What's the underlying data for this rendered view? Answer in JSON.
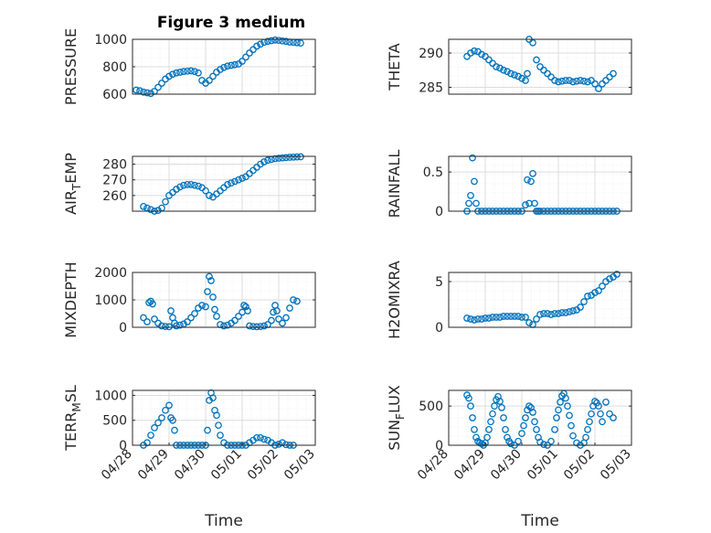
{
  "figure": {
    "title": "Figure 3 medium",
    "marker_color": "#0072BD",
    "axis_color": "#262626",
    "grid_color": "#dcdcdc",
    "background": "#ffffff"
  },
  "chart_data": [
    {
      "type": "scatter",
      "ylabel": "PRESSURE",
      "ylim": [
        600,
        1000
      ],
      "yticks": [
        600,
        800,
        1000
      ],
      "ytick_labels": [
        "600",
        "800",
        "1000"
      ],
      "xlim": [
        0,
        5
      ],
      "xticks": [],
      "xtick_labels": [],
      "xlabel": "",
      "grid": true,
      "series": [
        {
          "x": [
            0.1,
            0.2,
            0.3,
            0.4,
            0.5,
            0.6,
            0.7,
            0.8,
            0.9,
            1.0,
            1.1,
            1.2,
            1.3,
            1.4,
            1.5,
            1.6,
            1.7,
            1.8,
            1.9,
            2.0,
            2.1,
            2.2,
            2.3,
            2.4,
            2.5,
            2.6,
            2.7,
            2.8,
            2.9,
            3.0,
            3.1,
            3.2,
            3.3,
            3.4,
            3.5,
            3.6,
            3.7,
            3.8,
            3.9,
            4.0,
            4.1,
            4.2,
            4.3,
            4.4,
            4.5,
            4.6
          ],
          "y": [
            630,
            625,
            615,
            610,
            605,
            620,
            650,
            680,
            710,
            730,
            745,
            755,
            760,
            765,
            768,
            770,
            765,
            755,
            700,
            680,
            700,
            730,
            760,
            780,
            795,
            805,
            810,
            815,
            820,
            840,
            870,
            900,
            925,
            950,
            965,
            978,
            985,
            990,
            995,
            992,
            988,
            985,
            980,
            978,
            975,
            972
          ]
        }
      ]
    },
    {
      "type": "scatter",
      "ylabel": "THETA",
      "ylim": [
        284,
        292
      ],
      "yticks": [
        285,
        290
      ],
      "ytick_labels": [
        "285",
        "290"
      ],
      "xlim": [
        0,
        5
      ],
      "xticks": [],
      "xtick_labels": [],
      "xlabel": "",
      "grid": true,
      "series": [
        {
          "x": [
            0.5,
            0.6,
            0.7,
            0.8,
            0.9,
            1.0,
            1.1,
            1.2,
            1.3,
            1.4,
            1.5,
            1.6,
            1.7,
            1.8,
            1.9,
            2.0,
            2.1,
            2.15,
            2.2,
            2.3,
            2.4,
            2.5,
            2.6,
            2.7,
            2.8,
            2.9,
            3.0,
            3.1,
            3.2,
            3.3,
            3.4,
            3.5,
            3.6,
            3.7,
            3.8,
            3.9,
            4.0,
            4.1,
            4.2,
            4.3,
            4.4,
            4.5
          ],
          "y": [
            289.5,
            290.0,
            290.3,
            290.2,
            289.8,
            289.5,
            289.0,
            288.5,
            288.0,
            287.8,
            287.5,
            287.3,
            287.0,
            286.8,
            286.6,
            286.3,
            286.0,
            287.0,
            292.0,
            291.5,
            289.0,
            288.0,
            287.5,
            287.0,
            286.5,
            286.0,
            285.8,
            285.9,
            286.0,
            286.0,
            285.8,
            285.9,
            286.0,
            285.9,
            285.8,
            286.0,
            285.5,
            284.8,
            285.5,
            286.0,
            286.5,
            287.0
          ]
        }
      ]
    },
    {
      "type": "scatter",
      "ylabel": "AIR_TEMP",
      "ylim": [
        250,
        285
      ],
      "yticks": [
        260,
        270,
        280
      ],
      "ytick_labels": [
        "260",
        "270",
        "280"
      ],
      "xlim": [
        0,
        5
      ],
      "xticks": [],
      "xtick_labels": [],
      "xlabel": "",
      "grid": true,
      "series": [
        {
          "x": [
            0.3,
            0.4,
            0.5,
            0.6,
            0.7,
            0.8,
            0.9,
            1.0,
            1.1,
            1.2,
            1.3,
            1.4,
            1.5,
            1.6,
            1.7,
            1.8,
            1.9,
            2.0,
            2.1,
            2.2,
            2.3,
            2.4,
            2.5,
            2.6,
            2.7,
            2.8,
            2.9,
            3.0,
            3.1,
            3.2,
            3.3,
            3.4,
            3.5,
            3.6,
            3.7,
            3.8,
            3.9,
            4.0,
            4.1,
            4.2,
            4.3,
            4.4,
            4.5,
            4.6
          ],
          "y": [
            253,
            252,
            251,
            250,
            250.5,
            252,
            256,
            260,
            262,
            264,
            265.5,
            266.5,
            267,
            267,
            266.5,
            266,
            265,
            263,
            260,
            259,
            261,
            263,
            265,
            267,
            268,
            269,
            270,
            271,
            272,
            274,
            276,
            278,
            280,
            281.5,
            282.5,
            283,
            283.5,
            283.8,
            284,
            284.2,
            284.4,
            284.5,
            284.6,
            284.7
          ]
        }
      ]
    },
    {
      "type": "scatter",
      "ylabel": "RAINFALL",
      "ylim": [
        0,
        0.7
      ],
      "yticks": [
        0,
        0.5
      ],
      "ytick_labels": [
        "0",
        "0.5"
      ],
      "xlim": [
        0,
        5
      ],
      "xticks": [],
      "xtick_labels": [],
      "xlabel": "",
      "grid": true,
      "series": [
        {
          "x": [
            0.5,
            0.55,
            0.6,
            0.65,
            0.7,
            0.75,
            0.8,
            0.9,
            1.0,
            1.1,
            1.2,
            1.3,
            1.4,
            1.5,
            1.6,
            1.7,
            1.8,
            1.9,
            2.0,
            2.1,
            2.15,
            2.2,
            2.25,
            2.3,
            2.35,
            2.4,
            2.45,
            2.5,
            2.6,
            2.7,
            2.8,
            2.9,
            3.0,
            3.1,
            3.2,
            3.3,
            3.4,
            3.5,
            3.6,
            3.7,
            3.8,
            3.9,
            4.0,
            4.1,
            4.2,
            4.3,
            4.4,
            4.5,
            4.6
          ],
          "y": [
            0,
            0.1,
            0.2,
            0.68,
            0.38,
            0.1,
            0,
            0,
            0,
            0,
            0,
            0,
            0,
            0,
            0,
            0,
            0,
            0,
            0,
            0.08,
            0.4,
            0.1,
            0.38,
            0.48,
            0.1,
            0,
            0,
            0,
            0,
            0,
            0,
            0,
            0,
            0,
            0,
            0,
            0,
            0,
            0,
            0,
            0,
            0,
            0,
            0,
            0,
            0,
            0,
            0,
            0
          ]
        }
      ]
    },
    {
      "type": "scatter",
      "ylabel": "MIXDEPTH",
      "ylim": [
        0,
        2000
      ],
      "yticks": [
        0,
        1000,
        2000
      ],
      "ytick_labels": [
        "0",
        "1000",
        "2000"
      ],
      "xlim": [
        0,
        5
      ],
      "xticks": [],
      "xtick_labels": [],
      "xlabel": "",
      "grid": true,
      "series": [
        {
          "x": [
            0.3,
            0.4,
            0.45,
            0.5,
            0.55,
            0.6,
            0.7,
            0.8,
            0.9,
            1.0,
            1.05,
            1.1,
            1.15,
            1.2,
            1.3,
            1.4,
            1.5,
            1.6,
            1.7,
            1.8,
            1.9,
            2.0,
            2.05,
            2.1,
            2.15,
            2.2,
            2.25,
            2.3,
            2.4,
            2.5,
            2.6,
            2.7,
            2.8,
            2.9,
            3.0,
            3.05,
            3.1,
            3.15,
            3.2,
            3.3,
            3.4,
            3.5,
            3.6,
            3.7,
            3.8,
            3.85,
            3.9,
            3.95,
            4.0,
            4.1,
            4.2,
            4.3,
            4.4,
            4.5
          ],
          "y": [
            350,
            200,
            900,
            950,
            850,
            300,
            150,
            50,
            30,
            20,
            600,
            350,
            150,
            50,
            80,
            120,
            200,
            350,
            500,
            700,
            800,
            750,
            1300,
            1850,
            1700,
            1100,
            650,
            400,
            100,
            50,
            80,
            150,
            250,
            400,
            550,
            800,
            750,
            600,
            50,
            30,
            20,
            30,
            50,
            100,
            250,
            550,
            800,
            600,
            300,
            150,
            350,
            700,
            1000,
            950
          ]
        }
      ]
    },
    {
      "type": "scatter",
      "ylabel": "H2OMIXRA",
      "ylim": [
        0,
        6
      ],
      "yticks": [
        0,
        5
      ],
      "ytick_labels": [
        "0",
        "5"
      ],
      "xlim": [
        0,
        5
      ],
      "xticks": [],
      "xtick_labels": [],
      "xlabel": "",
      "grid": true,
      "series": [
        {
          "x": [
            0.5,
            0.6,
            0.7,
            0.8,
            0.9,
            1.0,
            1.1,
            1.2,
            1.3,
            1.4,
            1.5,
            1.6,
            1.7,
            1.8,
            1.9,
            2.0,
            2.1,
            2.2,
            2.3,
            2.4,
            2.5,
            2.6,
            2.7,
            2.8,
            2.9,
            3.0,
            3.1,
            3.2,
            3.3,
            3.4,
            3.5,
            3.6,
            3.7,
            3.8,
            3.9,
            4.0,
            4.1,
            4.2,
            4.3,
            4.4,
            4.5,
            4.6
          ],
          "y": [
            1.0,
            0.9,
            0.8,
            0.9,
            0.9,
            1.0,
            1.0,
            1.1,
            1.1,
            1.1,
            1.2,
            1.2,
            1.2,
            1.2,
            1.2,
            1.1,
            1.1,
            0.5,
            0.3,
            0.9,
            1.4,
            1.5,
            1.5,
            1.4,
            1.5,
            1.5,
            1.6,
            1.6,
            1.7,
            1.8,
            1.9,
            2.2,
            2.8,
            3.4,
            3.5,
            3.8,
            4.0,
            4.5,
            5.0,
            5.3,
            5.5,
            5.8
          ]
        }
      ]
    },
    {
      "type": "scatter",
      "ylabel": "TERR_MSL",
      "ylim": [
        0,
        1100
      ],
      "yticks": [
        0,
        500,
        1000
      ],
      "ytick_labels": [
        "0",
        "500",
        "1000"
      ],
      "xlim": [
        0,
        5
      ],
      "xticks": [
        0,
        1,
        2,
        3,
        4,
        5
      ],
      "xtick_labels": [
        "04/28",
        "04/29",
        "04/30",
        "05/01",
        "05/02",
        "05/03"
      ],
      "xlabel": "Time",
      "grid": true,
      "series": [
        {
          "x": [
            0.3,
            0.4,
            0.5,
            0.6,
            0.7,
            0.8,
            0.9,
            1.0,
            1.05,
            1.1,
            1.15,
            1.2,
            1.3,
            1.4,
            1.5,
            1.6,
            1.7,
            1.8,
            1.9,
            2.0,
            2.05,
            2.1,
            2.15,
            2.2,
            2.25,
            2.3,
            2.35,
            2.4,
            2.5,
            2.6,
            2.7,
            2.8,
            2.9,
            3.0,
            3.1,
            3.2,
            3.3,
            3.4,
            3.5,
            3.6,
            3.7,
            3.8,
            3.9,
            4.0,
            4.1,
            4.2,
            4.3,
            4.4
          ],
          "y": [
            0,
            50,
            200,
            350,
            450,
            550,
            700,
            800,
            550,
            500,
            300,
            0,
            0,
            0,
            0,
            0,
            0,
            0,
            0,
            0,
            300,
            900,
            1050,
            950,
            700,
            600,
            400,
            200,
            50,
            0,
            0,
            0,
            0,
            0,
            0,
            50,
            100,
            150,
            150,
            120,
            100,
            50,
            0,
            20,
            50,
            10,
            0,
            0
          ]
        }
      ]
    },
    {
      "type": "scatter",
      "ylabel": "SUN_FLUX",
      "ylim": [
        0,
        700
      ],
      "yticks": [
        0,
        500
      ],
      "ytick_labels": [
        "0",
        "500"
      ],
      "xlim": [
        0,
        5
      ],
      "xticks": [
        0,
        1,
        2,
        3,
        4,
        5
      ],
      "xtick_labels": [
        "04/28",
        "04/29",
        "04/30",
        "05/01",
        "05/02",
        "05/03"
      ],
      "xlabel": "Time",
      "grid": true,
      "series": [
        {
          "x": [
            0.5,
            0.55,
            0.6,
            0.65,
            0.7,
            0.75,
            0.8,
            0.85,
            0.9,
            0.95,
            1.0,
            1.05,
            1.1,
            1.15,
            1.2,
            1.25,
            1.3,
            1.35,
            1.4,
            1.45,
            1.5,
            1.55,
            1.6,
            1.65,
            1.7,
            1.8,
            1.9,
            2.0,
            2.05,
            2.1,
            2.15,
            2.2,
            2.25,
            2.3,
            2.35,
            2.4,
            2.45,
            2.5,
            2.6,
            2.7,
            2.8,
            2.9,
            2.95,
            3.0,
            3.05,
            3.1,
            3.15,
            3.2,
            3.25,
            3.3,
            3.35,
            3.4,
            3.5,
            3.6,
            3.7,
            3.75,
            3.8,
            3.85,
            3.9,
            3.95,
            4.0,
            4.05,
            4.1,
            4.15,
            4.2,
            4.3,
            4.4,
            4.5
          ],
          "y": [
            640,
            600,
            500,
            350,
            200,
            100,
            50,
            30,
            20,
            0,
            30,
            100,
            200,
            300,
            400,
            500,
            580,
            620,
            560,
            480,
            350,
            200,
            100,
            50,
            20,
            0,
            50,
            150,
            250,
            350,
            450,
            500,
            480,
            420,
            300,
            200,
            100,
            40,
            10,
            0,
            50,
            200,
            350,
            450,
            550,
            630,
            660,
            600,
            500,
            380,
            250,
            120,
            30,
            0,
            30,
            100,
            200,
            300,
            400,
            500,
            560,
            540,
            500,
            400,
            300,
            550,
            400,
            350
          ]
        }
      ]
    }
  ]
}
